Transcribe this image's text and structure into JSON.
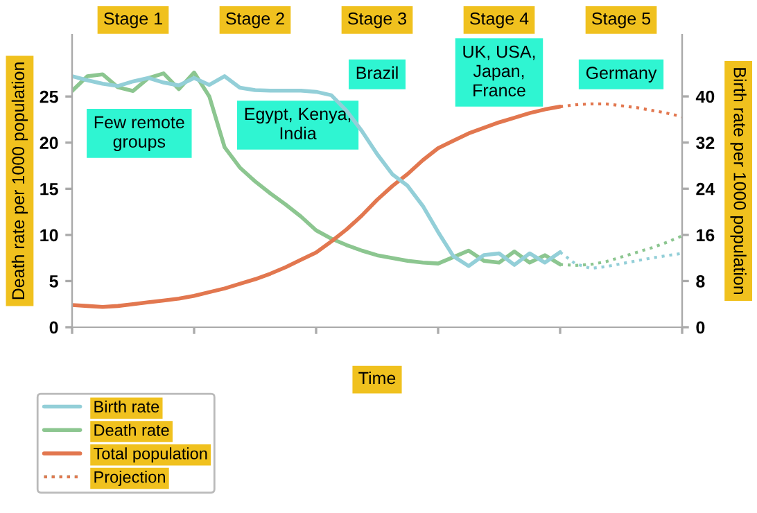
{
  "chart_data": {
    "type": "line",
    "xlabel": "Time",
    "ylabel": "Death rate per 1000 population",
    "y2label": "Birth rate per 1000 population",
    "categories": [
      null,
      null,
      null,
      null,
      null,
      null,
      null,
      null,
      null,
      null,
      null,
      null,
      null,
      null,
      null,
      null,
      null,
      null,
      null,
      null,
      null,
      null,
      null,
      null,
      null,
      null,
      null,
      null,
      null,
      null,
      null,
      null,
      null,
      null,
      null,
      null,
      null,
      null,
      null,
      null,
      null
    ],
    "ylim": [
      0,
      31.7
    ],
    "yticks": [
      0,
      5,
      10,
      15,
      20,
      25
    ],
    "y2lim": [
      0,
      50.7
    ],
    "y2ticks": [
      0,
      8,
      16,
      24,
      32,
      40
    ],
    "grid": false,
    "legend": "bottom left",
    "marker": "none",
    "annotations": [
      "Stage 1",
      "Stage 2",
      "Stage 3",
      "Stage 4",
      "Stage 5",
      "Few remote groups",
      "Egypt, Kenya, India",
      "Brazil",
      "UK, USA, Japan, France",
      "Germany"
    ],
    "series": [
      {
        "name": "Birth rate",
        "color": "#93cfd8",
        "axis": "y2",
        "line_style": "solid",
        "values": [
          43.5,
          42.8,
          42.2,
          41.8,
          42.6,
          43.2,
          42.4,
          41.9,
          43.2,
          42.0,
          43.5,
          41.5,
          41.1,
          41,
          41,
          41,
          40.8,
          40.2,
          37.5,
          34,
          30,
          26.5,
          24.5,
          21,
          16.5,
          12.3,
          10.6,
          12.5,
          12.8,
          10.8,
          12.8,
          11.2,
          13,
          null,
          null,
          null,
          null,
          null,
          null,
          null,
          null
        ]
      },
      {
        "name": "Death rate",
        "color": "#8cc690",
        "axis": "y",
        "line_style": "solid",
        "values": [
          25.6,
          27.2,
          27.4,
          26,
          25.6,
          27,
          27.5,
          25.8,
          27.6,
          25,
          19.5,
          17.3,
          15.8,
          14.5,
          13.3,
          12,
          10.5,
          9.6,
          8.9,
          8.3,
          7.8,
          7.5,
          7.2,
          7.0,
          6.9,
          7.6,
          8.3,
          7.2,
          7.0,
          8.2,
          7.0,
          7.8,
          6.8,
          null,
          null,
          null,
          null,
          null,
          null,
          null,
          null
        ]
      },
      {
        "name": "Total population",
        "color": "#e2774f",
        "axis": "y",
        "line_style": "solid",
        "values": [
          2.4,
          2.3,
          2.2,
          2.3,
          2.5,
          2.7,
          2.9,
          3.1,
          3.4,
          3.8,
          4.2,
          4.7,
          5.2,
          5.8,
          6.5,
          7.3,
          8.1,
          9.3,
          10.6,
          12.1,
          13.8,
          15.3,
          16.6,
          18.1,
          19.4,
          20.2,
          21.0,
          21.6,
          22.2,
          22.7,
          23.2,
          23.6,
          23.9,
          null,
          null,
          null,
          null,
          null,
          null,
          null,
          null
        ]
      },
      {
        "name": "Projection",
        "color": "#93cfd8",
        "axis": "y2",
        "line_style": "dotted",
        "values": [
          null,
          null,
          null,
          null,
          null,
          null,
          null,
          null,
          null,
          null,
          null,
          null,
          null,
          null,
          null,
          null,
          null,
          null,
          null,
          null,
          null,
          null,
          null,
          null,
          null,
          null,
          null,
          null,
          null,
          null,
          null,
          null,
          13,
          11,
          10.2,
          10.5,
          11,
          11.5,
          12,
          12.4,
          12.8
        ]
      },
      {
        "color": "#8cc690",
        "axis": "y",
        "line_style": "dotted",
        "values": [
          null,
          null,
          null,
          null,
          null,
          null,
          null,
          null,
          null,
          null,
          null,
          null,
          null,
          null,
          null,
          null,
          null,
          null,
          null,
          null,
          null,
          null,
          null,
          null,
          null,
          null,
          null,
          null,
          null,
          null,
          null,
          null,
          6.8,
          6.7,
          6.8,
          7.1,
          7.6,
          8.1,
          8.6,
          9.2,
          9.9
        ]
      },
      {
        "color": "#e2774f",
        "axis": "y",
        "line_style": "dotted",
        "values": [
          null,
          null,
          null,
          null,
          null,
          null,
          null,
          null,
          null,
          null,
          null,
          null,
          null,
          null,
          null,
          null,
          null,
          null,
          null,
          null,
          null,
          null,
          null,
          null,
          null,
          null,
          null,
          null,
          null,
          null,
          null,
          null,
          23.9,
          24.1,
          24.2,
          24.2,
          24.0,
          23.8,
          23.5,
          23.2,
          22.8
        ]
      }
    ]
  }
}
